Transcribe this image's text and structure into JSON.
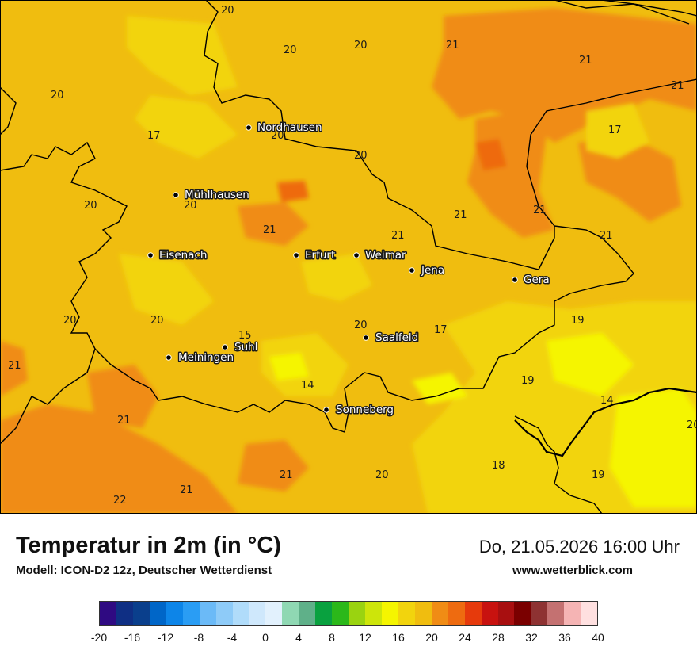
{
  "map": {
    "cities": [
      {
        "name": "Nordhausen"
      },
      {
        "name": "Mühlhausen"
      },
      {
        "name": "Eisenach"
      },
      {
        "name": "Erfurt"
      },
      {
        "name": "Weimar"
      },
      {
        "name": "Jena"
      },
      {
        "name": "Gera"
      },
      {
        "name": "Suhl"
      },
      {
        "name": "Meiningen"
      },
      {
        "name": "Saalfeld"
      },
      {
        "name": "Sonneberg"
      }
    ],
    "temperature_labels": [
      "20",
      "20",
      "20",
      "21",
      "21",
      "21",
      "20",
      "17",
      "20",
      "17",
      "20",
      "20",
      "20",
      "21",
      "21",
      "21",
      "21",
      "21",
      "20",
      "20",
      "15",
      "20",
      "17",
      "19",
      "21",
      "20",
      "14",
      "19",
      "14",
      "20",
      "21",
      "18",
      "21",
      "20",
      "19",
      "21",
      "22"
    ]
  },
  "title": "Temperatur in 2m (in °C)",
  "subtitle": "Modell: ICON-D2 12z, Deutscher Wetterdienst",
  "datetime": "Do, 21.05.2026 16:00 Uhr",
  "website": "www.wetterblick.com",
  "legend": {
    "colors": [
      "#2f0a82",
      "#0f2f84",
      "#0a3f8c",
      "#0066c8",
      "#0d85e8",
      "#2a9df4",
      "#6bbaf7",
      "#8ecbf8",
      "#b0dcfa",
      "#cfe8fc",
      "#e2f1fd",
      "#8fd8b3",
      "#5fb089",
      "#09a13f",
      "#2bb81a",
      "#9ad310",
      "#cde50a",
      "#f5f500",
      "#f2d40d",
      "#f0bd0f",
      "#f08c15",
      "#ee6b10",
      "#e63a0c",
      "#c8120f",
      "#a80f10",
      "#7a0000",
      "#8e3232",
      "#c47171",
      "#f5b4b4",
      "#ffe0e0"
    ],
    "ticks": [
      "-20",
      "-16",
      "-12",
      "-8",
      "-4",
      "0",
      "4",
      "8",
      "12",
      "16",
      "20",
      "24",
      "28",
      "32",
      "36",
      "40"
    ]
  }
}
